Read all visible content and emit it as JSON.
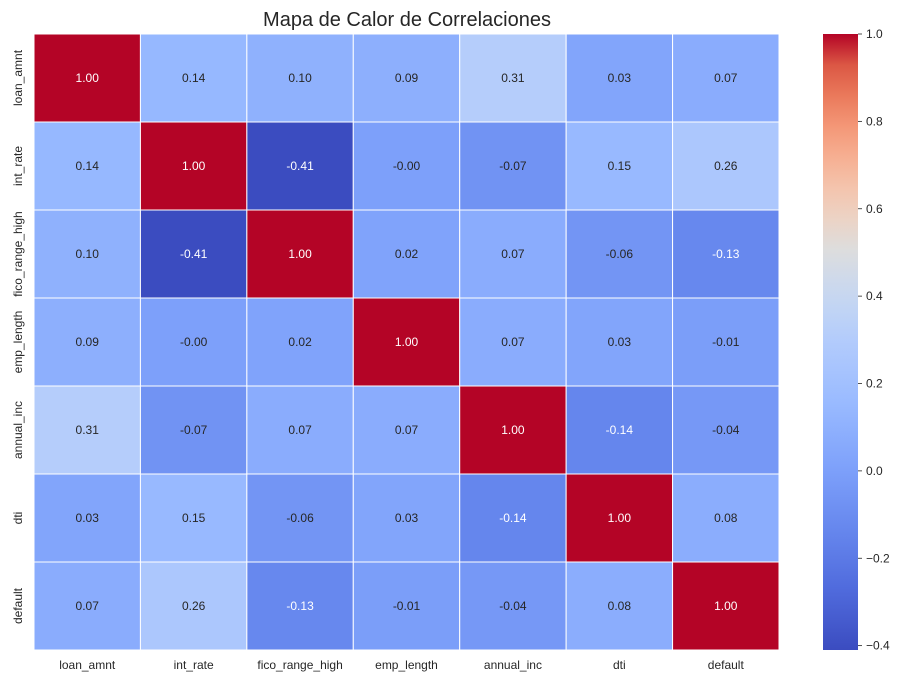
{
  "chart_data": {
    "type": "heatmap",
    "title": "Mapa de Calor de Correlaciones",
    "xlabel": "",
    "ylabel": "",
    "x_labels": [
      "loan_amnt",
      "int_rate",
      "fico_range_high",
      "emp_length",
      "annual_inc",
      "dti",
      "default"
    ],
    "y_labels": [
      "loan_amnt",
      "int_rate",
      "fico_range_high",
      "emp_length",
      "annual_inc",
      "dti",
      "default"
    ],
    "values": [
      [
        1.0,
        0.14,
        0.1,
        0.09,
        0.31,
        0.03,
        0.07
      ],
      [
        0.14,
        1.0,
        -0.41,
        -0.0,
        -0.07,
        0.15,
        0.26
      ],
      [
        0.1,
        -0.41,
        1.0,
        0.02,
        0.07,
        -0.06,
        -0.13
      ],
      [
        0.09,
        -0.0,
        0.02,
        1.0,
        0.07,
        0.03,
        -0.01
      ],
      [
        0.31,
        -0.07,
        0.07,
        0.07,
        1.0,
        -0.14,
        -0.04
      ],
      [
        0.03,
        0.15,
        -0.06,
        0.03,
        -0.14,
        1.0,
        0.08
      ],
      [
        0.07,
        0.26,
        -0.13,
        -0.01,
        -0.04,
        0.08,
        1.0
      ]
    ],
    "annotation_format": "0.00",
    "colormap": "coolwarm",
    "colorbar": {
      "vmin": -0.41,
      "vmax": 1.0,
      "ticks": [
        -0.4,
        -0.2,
        0.0,
        0.2,
        0.4,
        0.6,
        0.8,
        1.0
      ],
      "tick_labels": [
        "−0.4",
        "−0.2",
        "0.0",
        "0.2",
        "0.4",
        "0.6",
        "0.8",
        "1.0"
      ],
      "placement": "right"
    },
    "grid": false,
    "cell_border_color": "#ffffff"
  }
}
